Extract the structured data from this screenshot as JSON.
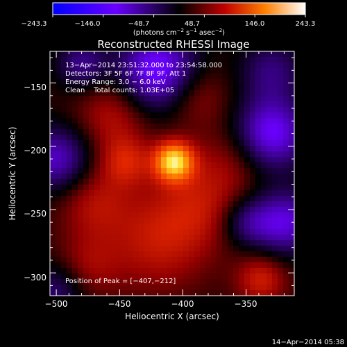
{
  "chart_data": {
    "type": "heatmap",
    "title": "Reconstructed RHESSI Image",
    "xlabel": "Heliocentric X (arcsec)",
    "ylabel": "Heliocentric Y (arcsec)",
    "xlim": [
      -505,
      -312
    ],
    "ylim": [
      -318,
      -125
    ],
    "x_ticks": [
      -500,
      -450,
      -400,
      -350
    ],
    "x_tick_labels": [
      "−500",
      "−450",
      "−400",
      "−350"
    ],
    "y_ticks": [
      -150,
      -200,
      -250,
      -300
    ],
    "y_tick_labels": [
      "−150",
      "−200",
      "−250",
      "−300"
    ],
    "colorbar": {
      "range": [
        -243.3,
        243.3
      ],
      "tick_labels": [
        "−243.3",
        "−146.0",
        "−48.7",
        "48.7",
        "146.0",
        "243.3"
      ],
      "unit_label_parts": [
        "(photons cm",
        "−2",
        " s",
        "−1",
        " asec",
        "−2",
        ")"
      ]
    },
    "info_lines": [
      "13−Apr−2014 23:51:32.000 to 23:54:58.000",
      "Detectors: 3F 5F 6F 7F 8F 9F, Att 1",
      "Energy Range: 3.0 − 6.0 keV",
      "Clean    Total counts: 1.03E+05"
    ],
    "peak_label": "Position of Peak = [−407,−212]",
    "peak": {
      "x": -407,
      "y": -212,
      "value": 243.3
    },
    "blobs": [
      {
        "x": -407,
        "y": -212,
        "amp": 190,
        "sigma": 11
      },
      {
        "x": -445,
        "y": -212,
        "amp": 70,
        "sigma": 14
      },
      {
        "x": -420,
        "y": -275,
        "amp": 65,
        "sigma": 28
      },
      {
        "x": -385,
        "y": -245,
        "amp": 55,
        "sigma": 25
      },
      {
        "x": -470,
        "y": -245,
        "amp": 55,
        "sigma": 20
      },
      {
        "x": -455,
        "y": -175,
        "amp": 60,
        "sigma": 20
      },
      {
        "x": -390,
        "y": -160,
        "amp": 50,
        "sigma": 18
      },
      {
        "x": -475,
        "y": -295,
        "amp": 45,
        "sigma": 18
      },
      {
        "x": -338,
        "y": -305,
        "amp": 75,
        "sigma": 14
      },
      {
        "x": -360,
        "y": -210,
        "amp": 35,
        "sigma": 20
      },
      {
        "x": -420,
        "y": -140,
        "amp": -150,
        "sigma": 22
      },
      {
        "x": -480,
        "y": -135,
        "amp": -80,
        "sigma": 14
      },
      {
        "x": -330,
        "y": -190,
        "amp": -140,
        "sigma": 20
      },
      {
        "x": -330,
        "y": -140,
        "amp": -70,
        "sigma": 18
      },
      {
        "x": -500,
        "y": -210,
        "amp": -110,
        "sigma": 18
      },
      {
        "x": -350,
        "y": -260,
        "amp": -70,
        "sigma": 14
      },
      {
        "x": -500,
        "y": -315,
        "amp": -70,
        "sigma": 16
      },
      {
        "x": -320,
        "y": -260,
        "amp": -120,
        "sigma": 18
      }
    ],
    "background_level": 15
  },
  "timestamp": "14−Apr−2014 05:38"
}
